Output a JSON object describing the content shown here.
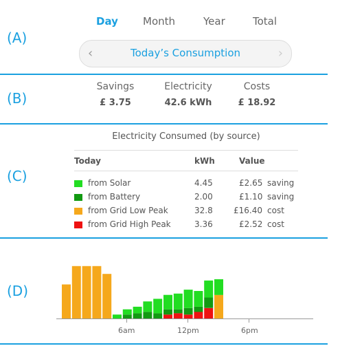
{
  "section_labels": [
    "(A)",
    "(B)",
    "(C)",
    "(D)"
  ],
  "tabs": [
    {
      "label": "Day",
      "active": true
    },
    {
      "label": "Month",
      "active": false
    },
    {
      "label": "Year",
      "active": false
    },
    {
      "label": "Total",
      "active": false
    }
  ],
  "pager": {
    "title": "Today’s Consumption",
    "prev_icon": "chevron-left-icon",
    "next_icon": "chevron-right-icon"
  },
  "summary": {
    "savings": {
      "label": "Savings",
      "value": "£ 3.75"
    },
    "electricity": {
      "label": "Electricity",
      "value": "42.6 kWh"
    },
    "costs": {
      "label": "Costs",
      "value": "£ 18.92"
    }
  },
  "table": {
    "title": "Electricity Consumed (by source)",
    "headers": {
      "source": "Today",
      "kwh": "kWh",
      "value": "Value"
    },
    "rows": [
      {
        "source": "from Solar",
        "kwh": "4.45",
        "value": "£2.65",
        "type": "saving",
        "color": "#22dd22"
      },
      {
        "source": "from Battery",
        "kwh": "2.00",
        "value": "£1.10",
        "type": "saving",
        "color": "#129a12"
      },
      {
        "source": "from Grid Low Peak",
        "kwh": "32.8",
        "value": "£16.40",
        "type": "cost",
        "color": "#f5a81c"
      },
      {
        "source": "from Grid High Peak",
        "kwh": "3.36",
        "value": "£2.52",
        "type": "cost",
        "color": "#ee1111"
      }
    ]
  },
  "colors": {
    "accent": "#1aa0e0",
    "solar": "#22dd22",
    "battery": "#129a12",
    "low_peak": "#f5a81c",
    "high_peak": "#ee1111"
  },
  "chart_data": {
    "type": "bar",
    "stacked": true,
    "x_ticks": [
      "6am",
      "12pm",
      "6pm"
    ],
    "categories": [
      "0",
      "1",
      "2",
      "3",
      "4",
      "5",
      "6",
      "7",
      "8",
      "9",
      "10",
      "11",
      "12",
      "13",
      "14",
      "15",
      "16",
      "17",
      "18",
      "19",
      "20",
      "21",
      "22",
      "23"
    ],
    "series": [
      {
        "name": "from Grid Low Peak",
        "color": "#f5a81c",
        "values": [
          2.6,
          4.0,
          4.0,
          4.0,
          3.4,
          0,
          0,
          0,
          0,
          0,
          0,
          0,
          0,
          0,
          0,
          1.8,
          0,
          0,
          0,
          0,
          0,
          0,
          0,
          0
        ]
      },
      {
        "name": "from Grid High Peak",
        "color": "#ee1111",
        "values": [
          0,
          0,
          0,
          0,
          0,
          0,
          0,
          0,
          0,
          0,
          0.3,
          0.4,
          0.3,
          0.5,
          0.8,
          0,
          0,
          0,
          0,
          0,
          0,
          0,
          0,
          0
        ]
      },
      {
        "name": "from Battery",
        "color": "#129a12",
        "values": [
          0,
          0,
          0,
          0,
          0,
          0,
          0.3,
          0.4,
          0.5,
          0.4,
          0.4,
          0.3,
          0.5,
          0.4,
          0.8,
          0,
          0,
          0,
          0,
          0,
          0,
          0,
          0,
          0
        ]
      },
      {
        "name": "from Solar",
        "color": "#22dd22",
        "values": [
          0,
          0,
          0,
          0,
          0,
          0.3,
          0.4,
          0.5,
          0.8,
          1.1,
          1.1,
          1.2,
          1.4,
          1.2,
          1.3,
          1.2,
          0,
          0,
          0,
          0,
          0,
          0,
          0,
          0
        ]
      }
    ],
    "ylim": [
      0,
      4.2
    ]
  }
}
